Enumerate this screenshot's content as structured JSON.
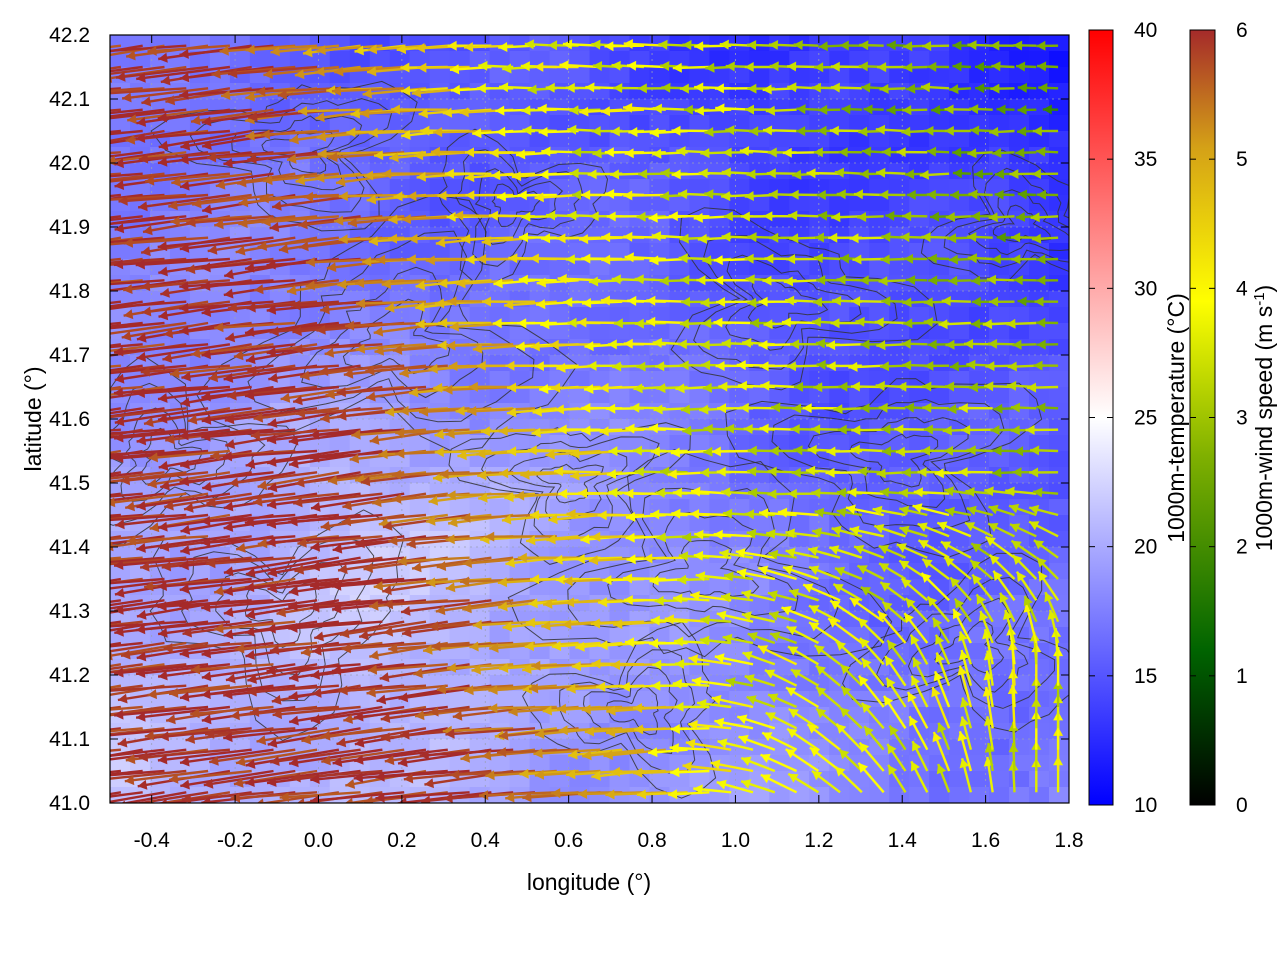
{
  "chart_data": {
    "type": "vector-field-heatmap",
    "xlabel": "longitude (°)",
    "ylabel": "latitude (°)",
    "xlim": [
      -0.5,
      1.8
    ],
    "ylim": [
      41.0,
      42.2
    ],
    "xticks": [
      -0.4,
      -0.2,
      0.0,
      0.2,
      0.4,
      0.6,
      0.8,
      1.0,
      1.2,
      1.4,
      1.6,
      1.8
    ],
    "yticks": [
      41.0,
      41.1,
      41.2,
      41.3,
      41.4,
      41.5,
      41.6,
      41.7,
      41.8,
      41.9,
      42.0,
      42.1,
      42.2
    ],
    "xtick_labels": [
      "-0.4",
      "-0.2",
      "0.0",
      "0.2",
      "0.4",
      "0.6",
      "0.8",
      "1.0",
      "1.2",
      "1.4",
      "1.6",
      "1.8"
    ],
    "ytick_labels": [
      "41.0",
      "41.1",
      "41.2",
      "41.3",
      "41.4",
      "41.5",
      "41.6",
      "41.7",
      "41.8",
      "41.9",
      "42.0",
      "42.1",
      "42.2"
    ],
    "grid": true,
    "heatmap": {
      "quantity": "1000m-temperature",
      "label_main": "1000m-temperature (°C)",
      "range": [
        10,
        40
      ],
      "ticks": [
        "10",
        "15",
        "20",
        "25",
        "30",
        "35",
        "40"
      ],
      "colors": [
        "#0000ff",
        "#ffffff",
        "#ff0000"
      ],
      "approx_range_in_view": [
        13,
        22
      ]
    },
    "vectors": {
      "quantity": "1000m-wind speed",
      "label_main": "1000m-wind speed (m s",
      "label_sup": "-1",
      "label_end": ")",
      "range": [
        0,
        6
      ],
      "ticks": [
        "0",
        "1",
        "2",
        "3",
        "4",
        "5",
        "6"
      ],
      "colors": [
        "#000000",
        "#006400",
        "#7fb000",
        "#ffff00",
        "#d4a017",
        "#a52a2a"
      ],
      "regions": [
        {
          "description": "west",
          "lon_range": [
            -0.5,
            0.6
          ],
          "speed": 6,
          "direction": "from ESE toward W"
        },
        {
          "description": "north-center",
          "lon_range": [
            0.6,
            1.1
          ],
          "speed": 3.5,
          "direction": "toward W"
        },
        {
          "description": "north-east",
          "lon_range": [
            1.1,
            1.8
          ],
          "speed": 1.5,
          "direction": "toward W"
        },
        {
          "description": "south-east",
          "lon_range": [
            1.3,
            1.8
          ],
          "speed": 3.5,
          "direction": "toward N"
        }
      ]
    },
    "contours": {
      "color": "#333333",
      "meaning": "terrain elevation"
    }
  }
}
